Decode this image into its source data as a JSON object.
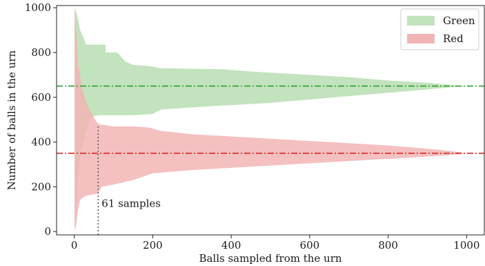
{
  "chart_data": {
    "type": "area",
    "title": "",
    "xlabel": "Balls sampled from the urn",
    "ylabel": "Number of balls in the urn",
    "xlim": [
      -45,
      1045
    ],
    "ylim": [
      -15,
      1010
    ],
    "xticks": [
      0,
      200,
      400,
      600,
      800,
      1000
    ],
    "yticks": [
      0,
      200,
      400,
      600,
      800,
      1000
    ],
    "grid": false,
    "legend_position": "top-right",
    "series": [
      {
        "name": "Green",
        "color": "#c2e3bd",
        "reference": 650,
        "reference_color": "#2ca02c",
        "upper": [
          [
            1,
            1000
          ],
          [
            5,
            980
          ],
          [
            10,
            950
          ],
          [
            15,
            900
          ],
          [
            25,
            860
          ],
          [
            30,
            835
          ],
          [
            80,
            835
          ],
          [
            80,
            800
          ],
          [
            110,
            800
          ],
          [
            130,
            760
          ],
          [
            150,
            745
          ],
          [
            190,
            740
          ],
          [
            220,
            730
          ],
          [
            380,
            725
          ],
          [
            450,
            715
          ],
          [
            550,
            705
          ],
          [
            700,
            690
          ],
          [
            800,
            675
          ],
          [
            900,
            665
          ],
          [
            960,
            655
          ],
          [
            1000,
            650
          ]
        ],
        "lower": [
          [
            1,
            0
          ],
          [
            10,
            250
          ],
          [
            20,
            380
          ],
          [
            30,
            450
          ],
          [
            40,
            500
          ],
          [
            50,
            515
          ],
          [
            61,
            520
          ],
          [
            100,
            520
          ],
          [
            150,
            520
          ],
          [
            200,
            525
          ],
          [
            220,
            545
          ],
          [
            300,
            555
          ],
          [
            400,
            565
          ],
          [
            500,
            575
          ],
          [
            600,
            590
          ],
          [
            700,
            605
          ],
          [
            800,
            620
          ],
          [
            900,
            635
          ],
          [
            960,
            645
          ],
          [
            1000,
            650
          ]
        ]
      },
      {
        "name": "Red",
        "color": "#f2b5b5",
        "reference": 350,
        "reference_color": "#d62728",
        "upper": [
          [
            1,
            1000
          ],
          [
            5,
            900
          ],
          [
            10,
            750
          ],
          [
            20,
            640
          ],
          [
            30,
            580
          ],
          [
            40,
            540
          ],
          [
            50,
            510
          ],
          [
            61,
            480
          ],
          [
            100,
            470
          ],
          [
            150,
            470
          ],
          [
            190,
            465
          ],
          [
            220,
            450
          ],
          [
            300,
            435
          ],
          [
            400,
            425
          ],
          [
            500,
            415
          ],
          [
            600,
            405
          ],
          [
            700,
            395
          ],
          [
            800,
            385
          ],
          [
            900,
            370
          ],
          [
            960,
            360
          ],
          [
            1000,
            350
          ]
        ],
        "lower": [
          [
            1,
            0
          ],
          [
            5,
            30
          ],
          [
            10,
            100
          ],
          [
            15,
            140
          ],
          [
            20,
            150
          ],
          [
            30,
            160
          ],
          [
            60,
            170
          ],
          [
            70,
            200
          ],
          [
            100,
            210
          ],
          [
            150,
            230
          ],
          [
            200,
            260
          ],
          [
            300,
            275
          ],
          [
            400,
            285
          ],
          [
            500,
            295
          ],
          [
            600,
            305
          ],
          [
            700,
            315
          ],
          [
            800,
            325
          ],
          [
            900,
            335
          ],
          [
            960,
            342
          ],
          [
            1000,
            350
          ]
        ]
      }
    ],
    "annotation": {
      "x": 61,
      "text": "61 samples",
      "label_y": 110
    }
  }
}
